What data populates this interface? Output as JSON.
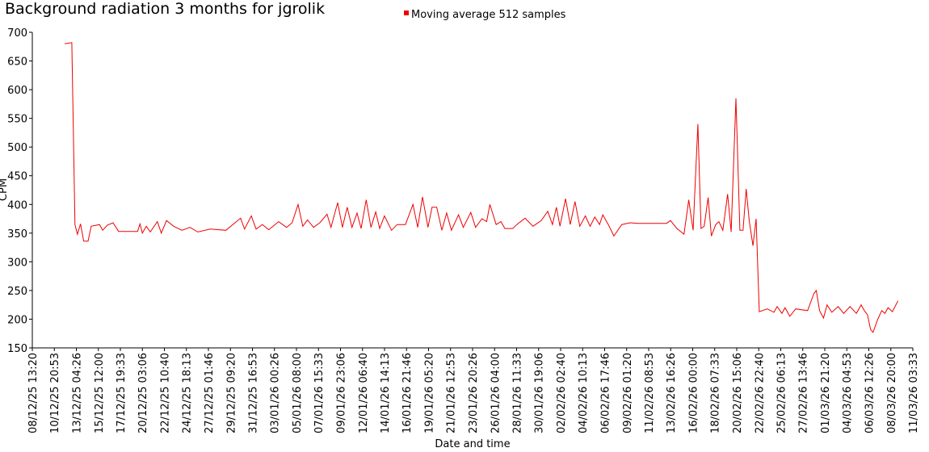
{
  "chart_data": {
    "type": "line",
    "title": "Background radiation 3 months for jgrolik",
    "x_label": "Date and time",
    "y_label": "CPM",
    "legend_position": "top",
    "grid": false,
    "series": [
      {
        "name": "Moving average 512 samples",
        "color": "#ee0000",
        "x": [
          "11/12/25 23:00",
          "12/12/25 17:00",
          "13/12/25 01:00",
          "13/12/25 07:00",
          "13/12/25 15:00",
          "13/12/25 23:00",
          "14/12/25 10:00",
          "14/12/25 18:00",
          "15/12/25 15:00",
          "15/12/25 23:00",
          "16/12/25 11:00",
          "17/12/25 01:00",
          "17/12/25 15:00",
          "19/12/25 15:00",
          "19/12/25 21:00",
          "20/12/25 03:00",
          "20/12/25 13:00",
          "20/12/25 23:00",
          "21/12/25 17:00",
          "22/12/25 03:00",
          "22/12/25 16:00",
          "23/12/25 10:00",
          "24/12/25 07:00",
          "25/12/25 03:00",
          "25/12/25 23:00",
          "27/12/25 06:00",
          "28/12/25 22:00",
          "30/12/25 11:00",
          "30/12/25 21:00",
          "31/12/25 14:00",
          "01/01/26 02:00",
          "01/01/26 18:00",
          "02/01/26 10:00",
          "03/01/26 11:00",
          "04/01/26 07:00",
          "04/01/26 21:00",
          "05/01/26 12:00",
          "06/01/26 00:00",
          "06/01/26 12:00",
          "07/01/26 03:00",
          "07/01/26 19:00",
          "08/01/26 13:00",
          "08/01/26 23:00",
          "09/01/26 16:00",
          "10/01/26 04:00",
          "10/01/26 16:00",
          "11/01/26 04:00",
          "11/01/26 17:00",
          "12/01/26 03:00",
          "12/01/26 16:00",
          "13/01/26 04:00",
          "13/01/26 16:00",
          "14/01/26 02:00",
          "14/01/26 14:00",
          "15/01/26 08:00",
          "15/01/26 22:00",
          "16/01/26 19:00",
          "17/01/26 14:00",
          "18/01/26 02:00",
          "18/01/26 14:00",
          "19/01/26 04:00",
          "19/01/26 14:00",
          "20/01/26 02:00",
          "20/01/26 15:00",
          "21/01/26 03:00",
          "21/01/26 15:00",
          "22/01/26 09:00",
          "22/01/26 21:00",
          "23/01/26 16:00",
          "24/01/26 04:00",
          "24/01/26 20:00",
          "25/01/26 08:00",
          "25/01/26 16:00",
          "26/01/26 08:00",
          "26/01/26 20:00",
          "27/01/26 06:00",
          "28/01/26 02:00",
          "28/01/26 12:00",
          "29/01/26 09:00",
          "30/01/26 05:00",
          "31/01/26 02:00",
          "31/01/26 18:00",
          "01/02/26 06:00",
          "01/02/26 16:00",
          "02/02/26 01:00",
          "02/02/26 15:00",
          "03/02/26 03:00",
          "03/02/26 15:00",
          "04/02/26 03:00",
          "04/02/26 17:00",
          "05/02/26 05:00",
          "05/02/26 17:00",
          "06/02/26 05:00",
          "06/02/26 13:00",
          "07/02/26 03:00",
          "07/02/26 17:00",
          "08/02/26 13:00",
          "09/02/26 10:00",
          "10/02/26 06:00",
          "13/02/26 06:00",
          "13/02/26 16:00",
          "14/02/26 08:00",
          "15/02/26 02:00",
          "15/02/26 14:00",
          "16/02/26 01:00",
          "16/02/26 13:00",
          "16/02/26 21:00",
          "17/02/26 05:00",
          "17/02/26 15:00",
          "17/02/26 23:00",
          "18/02/26 10:00",
          "18/02/26 18:00",
          "19/02/26 04:00",
          "19/02/26 16:00",
          "20/02/26 01:00",
          "20/02/26 13:00",
          "20/02/26 23:00",
          "21/02/26 07:00",
          "21/02/26 15:00",
          "21/02/26 23:00",
          "22/02/26 08:00",
          "22/02/26 16:00",
          "23/02/26 00:00",
          "23/02/26 20:00",
          "24/02/26 13:00",
          "24/02/26 21:00",
          "25/02/26 09:00",
          "25/02/26 17:00",
          "26/02/26 05:00",
          "26/02/26 20:00",
          "28/02/26 02:00",
          "28/02/26 18:00",
          "01/03/26 00:00",
          "01/03/26 08:00",
          "01/03/26 18:00",
          "02/03/26 03:00",
          "02/03/26 15:00",
          "03/03/26 07:00",
          "03/03/26 21:00",
          "04/03/26 13:00",
          "05/03/26 05:00",
          "05/03/26 17:00",
          "06/03/26 01:00",
          "06/03/26 09:00",
          "06/03/26 17:00",
          "06/03/26 23:00",
          "07/03/26 11:00",
          "07/03/26 21:00",
          "08/03/26 05:00",
          "08/03/26 13:00",
          "09/03/26 00:00",
          "09/03/26 14:00"
        ],
        "values": [
          680,
          682,
          365,
          348,
          366,
          336,
          336,
          362,
          365,
          355,
          364,
          368,
          353,
          353,
          366,
          350,
          362,
          352,
          370,
          350,
          372,
          362,
          355,
          360,
          352,
          357,
          355,
          376,
          357,
          380,
          357,
          365,
          356,
          370,
          360,
          368,
          400,
          362,
          373,
          360,
          368,
          383,
          360,
          403,
          360,
          395,
          360,
          385,
          358,
          408,
          360,
          387,
          358,
          380,
          355,
          365,
          365,
          400,
          360,
          413,
          360,
          395,
          395,
          355,
          385,
          355,
          382,
          360,
          386,
          360,
          375,
          370,
          400,
          365,
          370,
          358,
          358,
          365,
          376,
          362,
          372,
          388,
          365,
          395,
          362,
          410,
          365,
          405,
          362,
          380,
          362,
          378,
          365,
          382,
          365,
          345,
          365,
          368,
          367,
          367,
          372,
          358,
          348,
          408,
          355,
          540,
          358,
          362,
          412,
          345,
          365,
          370,
          355,
          418,
          352,
          585,
          355,
          355,
          427,
          370,
          328,
          375,
          213,
          218,
          212,
          222,
          210,
          220,
          205,
          218,
          215,
          245,
          250,
          215,
          202,
          225,
          212,
          222,
          210,
          222,
          210,
          225,
          215,
          208,
          182,
          177,
          200,
          215,
          210,
          220,
          213,
          232
        ]
      }
    ],
    "xlim": [
      "08/12/25 13:20",
      "11/03/26 03:33"
    ],
    "xticks": [
      "08/12/25 13:20",
      "10/12/25 20:53",
      "13/12/25 04:26",
      "15/12/25 12:00",
      "17/12/25 19:33",
      "20/12/25 03:06",
      "22/12/25 10:40",
      "24/12/25 18:13",
      "27/12/25 01:46",
      "29/12/25 09:20",
      "31/12/25 16:53",
      "03/01/26 00:26",
      "05/01/26 08:00",
      "07/01/26 15:33",
      "09/01/26 23:06",
      "12/01/26 06:40",
      "14/01/26 14:13",
      "16/01/26 21:46",
      "19/01/26 05:20",
      "21/01/26 12:53",
      "23/01/26 20:26",
      "26/01/26 04:00",
      "28/01/26 11:33",
      "30/01/26 19:06",
      "02/02/26 02:40",
      "04/02/26 10:13",
      "06/02/26 17:46",
      "09/02/26 01:20",
      "11/02/26 08:53",
      "13/02/26 16:26",
      "16/02/26 00:00",
      "18/02/26 07:33",
      "20/02/26 15:06",
      "22/02/26 22:40",
      "25/02/26 06:13",
      "27/02/26 13:46",
      "01/03/26 21:20",
      "04/03/26 04:53",
      "06/03/26 12:26",
      "08/03/26 20:00",
      "11/03/26 03:33"
    ],
    "ylim": [
      150,
      700
    ],
    "yticks": [
      150,
      200,
      250,
      300,
      350,
      400,
      450,
      500,
      550,
      600,
      650,
      700
    ]
  }
}
